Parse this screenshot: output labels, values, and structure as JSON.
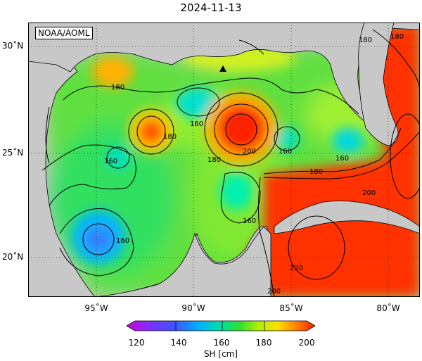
{
  "title": "2024-11-13",
  "credit": "NOAA/AOML",
  "lat_labels": [
    "30˚N",
    "25˚N",
    "20˚N"
  ],
  "lon_labels": [
    "95˚W",
    "90˚W",
    "85˚W",
    "80˚W"
  ],
  "contour_labels": [
    "180",
    "160",
    "180",
    "160",
    "200",
    "160",
    "180",
    "160",
    "180",
    "160",
    "160",
    "200",
    "220",
    "200",
    "180",
    "180"
  ],
  "colorbar": {
    "ticks": [
      "120",
      "140",
      "160",
      "180",
      "200"
    ],
    "units": "SH [cm]",
    "colors": [
      "#d000e0",
      "#4050ff",
      "#00b0ff",
      "#00e0a0",
      "#30e030",
      "#b0f000",
      "#ffe000",
      "#ff8000",
      "#ff2000"
    ]
  },
  "colors": {
    "land": "#c8c8c8",
    "contour": "#000000",
    "high": "#ff2000",
    "low": "#2080ff"
  },
  "marker": "buoy-triangle"
}
